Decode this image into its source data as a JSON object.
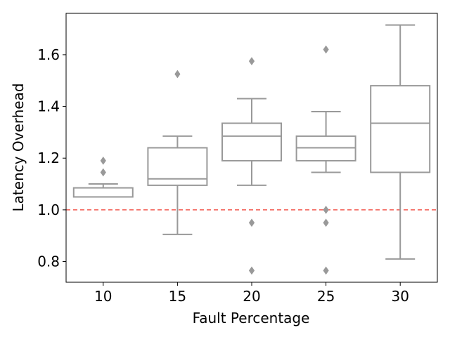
{
  "chart_data": {
    "type": "box",
    "title": "",
    "xlabel": "Fault Percentage",
    "ylabel": "Latency Overhead",
    "ylim": [
      0.72,
      1.76
    ],
    "yticks": [
      "0.8",
      "1.0",
      "1.2",
      "1.4",
      "1.6"
    ],
    "grid": false,
    "legend": "none",
    "box_color": "#999999",
    "reference_line": {
      "y": 1.0,
      "style": "dashed",
      "color": "#f25a50"
    },
    "categories": [
      "10",
      "15",
      "20",
      "25",
      "30"
    ],
    "boxes": [
      {
        "category": "10",
        "whisker_low": 1.05,
        "q1": 1.05,
        "median": 1.05,
        "q3": 1.085,
        "whisker_high": 1.1,
        "outliers": [
          1.19,
          1.145
        ]
      },
      {
        "category": "15",
        "whisker_low": 0.905,
        "q1": 1.095,
        "median": 1.12,
        "q3": 1.24,
        "whisker_high": 1.285,
        "outliers": [
          1.525
        ]
      },
      {
        "category": "20",
        "whisker_low": 1.095,
        "q1": 1.19,
        "median": 1.285,
        "q3": 1.335,
        "whisker_high": 1.43,
        "outliers": [
          1.575,
          0.95,
          0.765
        ]
      },
      {
        "category": "25",
        "whisker_low": 1.145,
        "q1": 1.19,
        "median": 1.24,
        "q3": 1.285,
        "whisker_high": 1.38,
        "outliers": [
          1.62,
          1.0,
          0.95,
          0.765
        ]
      },
      {
        "category": "30",
        "whisker_low": 0.81,
        "q1": 1.145,
        "median": 1.335,
        "q3": 1.48,
        "whisker_high": 1.715,
        "outliers": []
      }
    ]
  }
}
